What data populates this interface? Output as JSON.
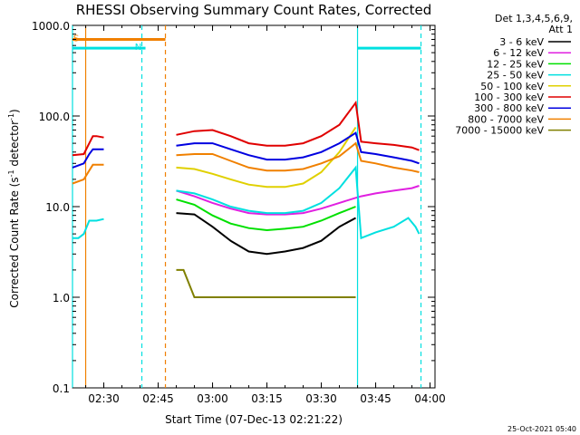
{
  "chart_data": {
    "type": "line",
    "title": "RHESSI Observing Summary Count Rates, Corrected",
    "xlabel": "Start Time (07-Dec-13 02:21:22)",
    "ylabel": "Corrected Count Rate (s⁻¹ detector⁻¹)",
    "ylabel_parts": [
      "Corrected Count Rate (s",
      "-1",
      " detector",
      "-1",
      ")"
    ],
    "yscale": "log",
    "ylim": [
      0.1,
      1000
    ],
    "xlim": [
      "02:21:22",
      "04:01:22"
    ],
    "x_tick_labels": [
      "02:30",
      "02:45",
      "03:00",
      "03:15",
      "03:30",
      "03:45",
      "04:00"
    ],
    "y_tick_labels": [
      "0.1",
      "1.0",
      "10.0",
      "100.0",
      "1000.0"
    ],
    "legend_header": [
      "Det 1,3,4,5,6,9,",
      "Att 1"
    ],
    "legend_placement": "right, outside",
    "flags": [
      {
        "label": "S",
        "color": "#f08000",
        "start": "02:21:22",
        "end": "02:47:00",
        "level": 700
      },
      {
        "label": "N",
        "color": "#00e0e0",
        "start": "02:21:22",
        "end": "02:41:30",
        "level": 560
      },
      {
        "label": "",
        "color": "#00e0e0",
        "start": "03:40:00",
        "end": "03:57:30",
        "level": 560
      }
    ],
    "vlines": [
      {
        "time": "02:21:22",
        "color": "#00e0e0",
        "style": "solid"
      },
      {
        "time": "02:25:00",
        "color": "#f08000",
        "style": "solid"
      },
      {
        "time": "02:40:30",
        "color": "#00e0e0",
        "style": "dashed"
      },
      {
        "time": "02:47:00",
        "color": "#f08000",
        "style": "dashed"
      },
      {
        "time": "03:40:00",
        "color": "#00e0e0",
        "style": "solid"
      },
      {
        "time": "03:57:30",
        "color": "#00e0e0",
        "style": "dashed"
      }
    ],
    "series": [
      {
        "name": "3 - 6 keV",
        "color": "#000000",
        "x": [
          "02:21:22",
          "02:24:30",
          "02:27:00",
          "02:29:00",
          "02:30:00",
          "02:49:00",
          "02:50:00",
          "02:55:00",
          "03:00:00",
          "03:05:00",
          "03:10:00",
          "03:15:00",
          "03:20:00",
          "03:25:00",
          "03:30:00",
          "03:35:00",
          "03:39:30"
        ],
        "y": [
          null,
          null,
          null,
          null,
          null,
          null,
          8.5,
          8.2,
          6.0,
          4.2,
          3.2,
          3.0,
          3.2,
          3.5,
          4.2,
          6.0,
          7.5
        ]
      },
      {
        "name": "6 - 12 keV",
        "color": "#e020e0",
        "x": [
          "02:49:00",
          "02:50:00",
          "02:55:00",
          "03:00:00",
          "03:05:00",
          "03:10:00",
          "03:15:00",
          "03:20:00",
          "03:25:00",
          "03:30:00",
          "03:35:00",
          "03:39:30",
          "03:41:00",
          "03:45:00",
          "03:50:00",
          "03:55:00",
          "03:57:00"
        ],
        "y": [
          null,
          15,
          13,
          11,
          9.5,
          8.5,
          8.2,
          8.2,
          8.5,
          9.5,
          11,
          12.5,
          13,
          14,
          15,
          16,
          17
        ]
      },
      {
        "name": "12 - 25 keV",
        "color": "#00e000",
        "x": [
          "02:24:30",
          "02:25:30",
          "02:27:00",
          "02:29:00",
          "02:30:00",
          "02:49:00",
          "02:50:00",
          "02:55:00",
          "03:00:00",
          "03:05:00",
          "03:10:00",
          "03:15:00",
          "03:20:00",
          "03:25:00",
          "03:30:00",
          "03:35:00",
          "03:39:30"
        ],
        "y": [
          null,
          null,
          null,
          null,
          null,
          null,
          12,
          10.5,
          8.0,
          6.5,
          5.8,
          5.5,
          5.7,
          6.0,
          7.0,
          8.5,
          10
        ]
      },
      {
        "name": "25 - 50 keV",
        "color": "#00e0e0",
        "x": [
          "02:21:22",
          "02:23:00",
          "02:24:30",
          "02:26:00",
          "02:28:00",
          "02:30:00",
          "02:49:00",
          "02:50:00",
          "02:55:00",
          "03:00:00",
          "03:05:00",
          "03:10:00",
          "03:15:00",
          "03:20:00",
          "03:25:00",
          "03:30:00",
          "03:35:00",
          "03:39:30",
          "03:41:00",
          "03:45:00",
          "03:50:00",
          "03:54:00",
          "03:56:00",
          "03:57:00"
        ],
        "y": [
          4.5,
          4.5,
          5.0,
          7.0,
          7.0,
          7.3,
          null,
          15,
          14,
          12,
          10,
          9,
          8.5,
          8.5,
          9,
          11,
          16,
          27,
          4.5,
          5.2,
          6.0,
          7.5,
          6.0,
          5.0
        ]
      },
      {
        "name": "50 - 100 keV",
        "color": "#e0d000",
        "x": [
          "02:49:00",
          "02:50:00",
          "02:55:00",
          "03:00:00",
          "03:05:00",
          "03:10:00",
          "03:15:00",
          "03:20:00",
          "03:25:00",
          "03:30:00",
          "03:35:00",
          "03:39:30"
        ],
        "y": [
          null,
          27,
          26,
          23,
          20,
          17.5,
          16.5,
          16.5,
          18,
          24,
          40,
          75
        ]
      },
      {
        "name": "100 - 300 keV",
        "color": "#e00000",
        "x": [
          "02:21:22",
          "02:24:30",
          "02:26:00",
          "02:27:00",
          "02:28:00",
          "02:30:00",
          "02:49:00",
          "02:50:00",
          "02:55:00",
          "03:00:00",
          "03:05:00",
          "03:10:00",
          "03:15:00",
          "03:20:00",
          "03:25:00",
          "03:30:00",
          "03:35:00",
          "03:39:30",
          "03:41:00",
          "03:45:00",
          "03:50:00",
          "03:55:00",
          "03:57:00"
        ],
        "y": [
          37,
          38,
          50,
          60,
          60,
          58,
          null,
          62,
          68,
          70,
          60,
          50,
          47,
          47,
          50,
          60,
          80,
          140,
          52,
          50,
          48,
          45,
          42
        ]
      },
      {
        "name": "300 - 800 keV",
        "color": "#0000e0",
        "x": [
          "02:21:22",
          "02:24:30",
          "02:26:00",
          "02:27:00",
          "02:28:00",
          "02:30:00",
          "02:49:00",
          "02:50:00",
          "02:55:00",
          "03:00:00",
          "03:05:00",
          "03:10:00",
          "03:15:00",
          "03:20:00",
          "03:25:00",
          "03:30:00",
          "03:35:00",
          "03:39:30",
          "03:41:00",
          "03:45:00",
          "03:50:00",
          "03:55:00",
          "03:57:00"
        ],
        "y": [
          27,
          30,
          38,
          43,
          43,
          43,
          null,
          47,
          50,
          50,
          43,
          37,
          33,
          33,
          35,
          40,
          50,
          65,
          40,
          38,
          35,
          32,
          30
        ]
      },
      {
        "name": "800 - 7000 keV",
        "color": "#f08000",
        "x": [
          "02:21:22",
          "02:24:30",
          "02:26:00",
          "02:27:00",
          "02:28:00",
          "02:30:00",
          "02:49:00",
          "02:50:00",
          "02:55:00",
          "03:00:00",
          "03:05:00",
          "03:10:00",
          "03:15:00",
          "03:20:00",
          "03:25:00",
          "03:30:00",
          "03:35:00",
          "03:39:30",
          "03:41:00",
          "03:45:00",
          "03:50:00",
          "03:55:00",
          "03:57:00"
        ],
        "y": [
          18,
          20,
          25,
          29,
          29,
          29,
          null,
          37,
          38,
          38,
          32,
          27,
          25,
          25,
          26,
          30,
          36,
          50,
          32,
          30,
          27,
          25,
          24
        ]
      },
      {
        "name": "7000 - 15000 keV",
        "color": "#808000",
        "x": [
          "02:49:00",
          "02:50:00",
          "02:52:00",
          "02:55:00",
          "03:00:00",
          "03:10:00",
          "03:20:00",
          "03:30:00",
          "03:35:00",
          "03:39:30",
          "03:41:00",
          "03:45:00",
          "03:50:00",
          "03:55:00",
          "03:57:00"
        ],
        "y": [
          null,
          2.0,
          2.0,
          1.0,
          1.0,
          1.0,
          1.0,
          1.0,
          1.0,
          1.0,
          null,
          null,
          null,
          null,
          null
        ]
      }
    ]
  },
  "footer": {
    "date": "25-Oct-2021 05:40"
  }
}
